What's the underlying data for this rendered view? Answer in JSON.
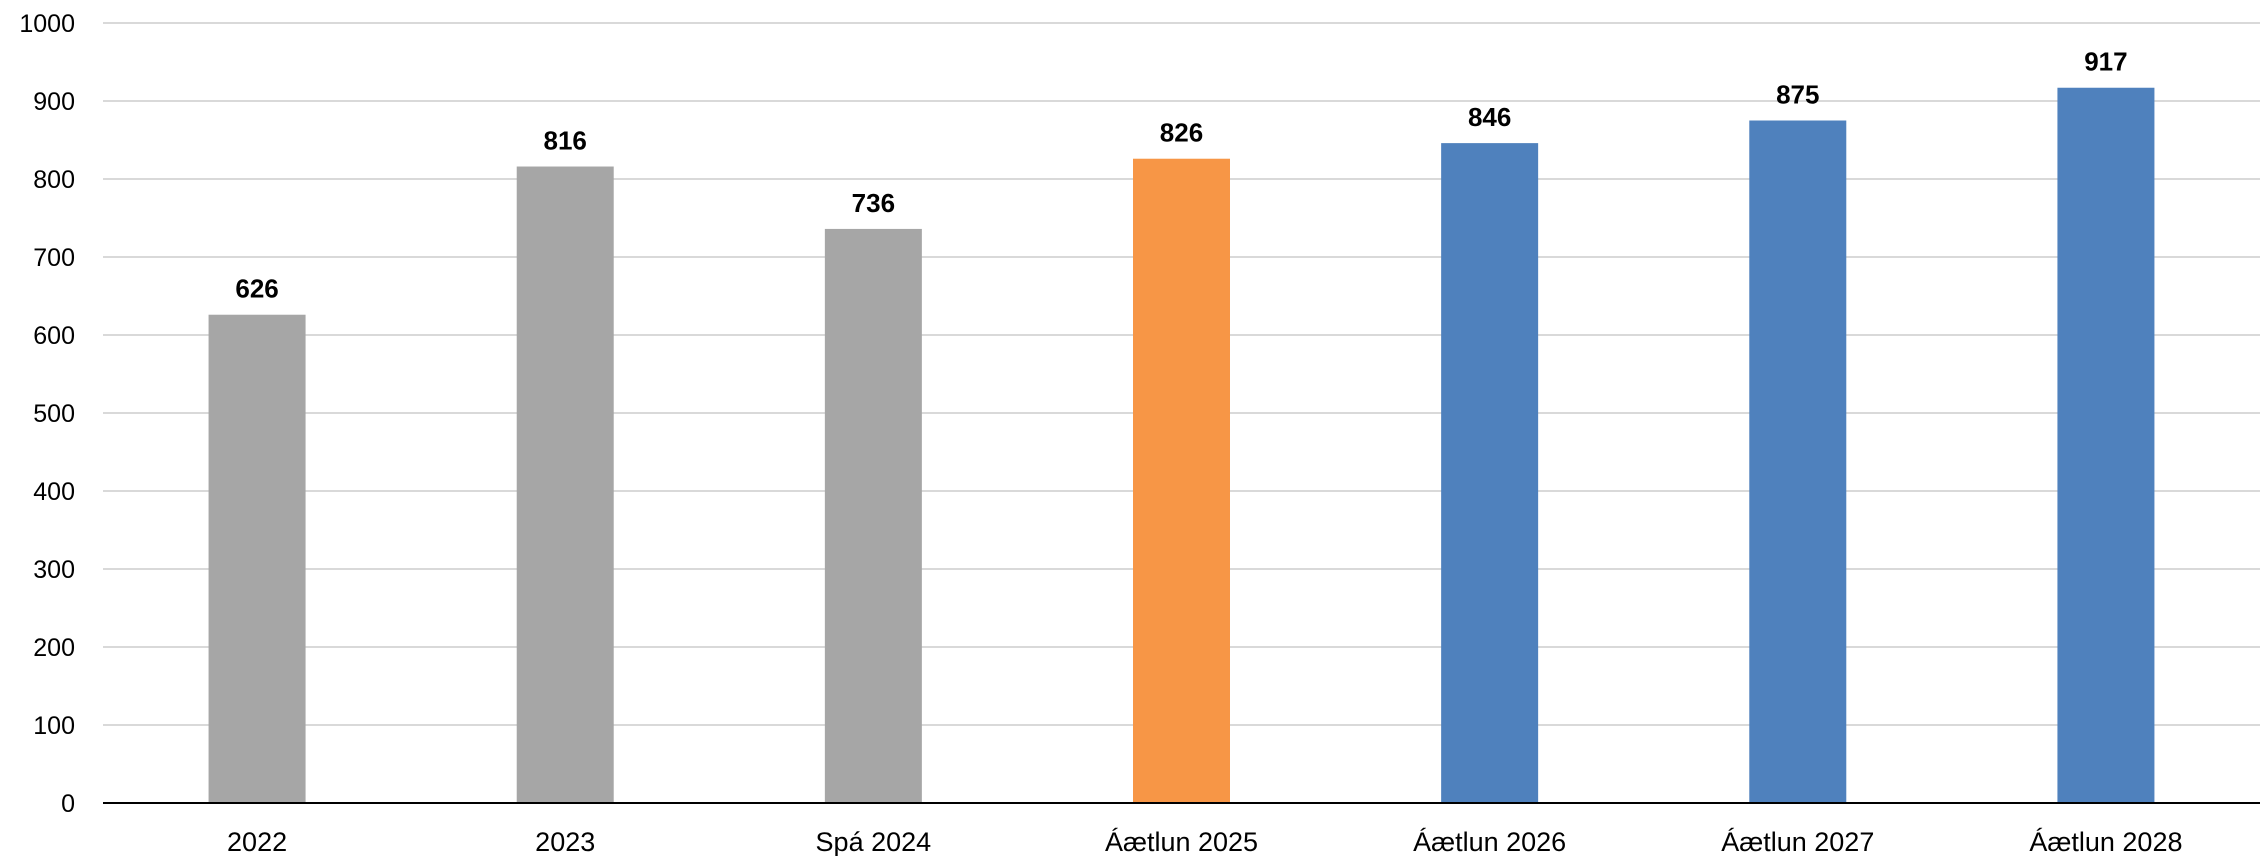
{
  "chart_data": {
    "type": "bar",
    "title": "",
    "xlabel": "",
    "ylabel": "",
    "categories": [
      "2022",
      "2023",
      "Spá 2024",
      "Áætlun 2025",
      "Áætlun 2026",
      "Áætlun 2027",
      "Áætlun 2028"
    ],
    "values": [
      626,
      816,
      736,
      826,
      846,
      875,
      917
    ],
    "data_labels": [
      "626",
      "816",
      "736",
      "826",
      "846",
      "875",
      "917"
    ],
    "bar_colors": [
      "#a6a6a6",
      "#a6a6a6",
      "#a6a6a6",
      "#f79646",
      "#4f81bd",
      "#4f81bd",
      "#4f81bd"
    ],
    "ylim": [
      0,
      1000
    ],
    "yticks": [
      0,
      100,
      200,
      300,
      400,
      500,
      600,
      700,
      800,
      900,
      1000
    ],
    "ytick_labels": [
      "0",
      "100",
      "200",
      "300",
      "400",
      "500",
      "600",
      "700",
      "800",
      "900",
      "1000"
    ],
    "grid": true,
    "legend": "none"
  }
}
